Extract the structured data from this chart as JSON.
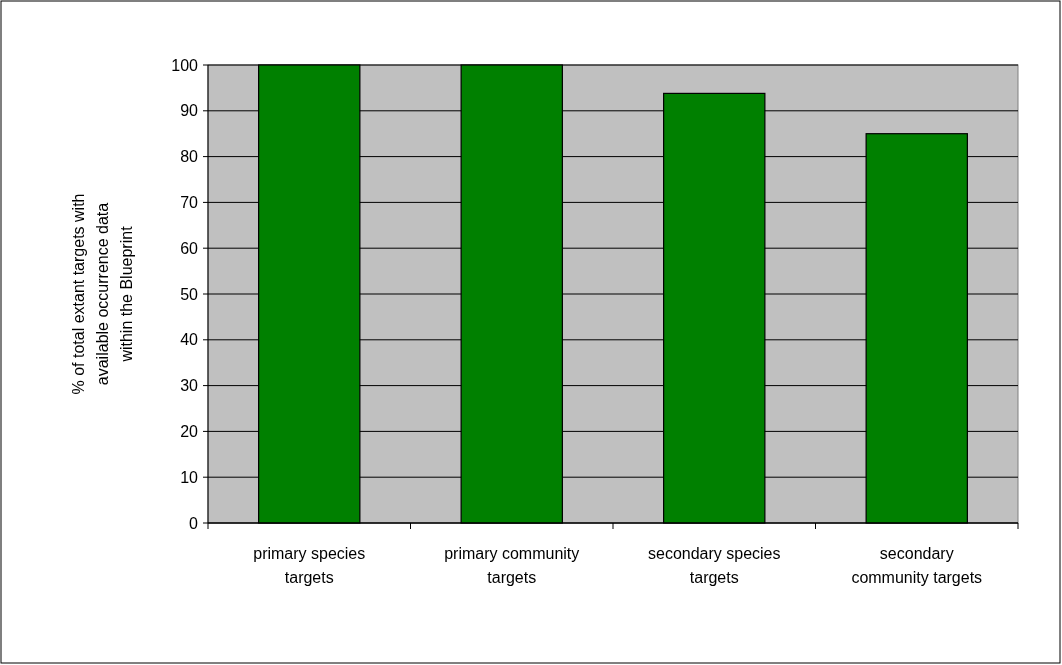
{
  "chart_data": {
    "type": "bar",
    "ylabel": "% of total extant targets with available occurrence data within the Blueprint",
    "categories": [
      "primary species targets",
      "primary community targets",
      "secondary species targets",
      "secondary community targets"
    ],
    "values": [
      100,
      100,
      93.8,
      85
    ],
    "color": "#008000",
    "ylim": [
      0,
      100
    ],
    "yticks": [
      0,
      10,
      20,
      30,
      40,
      50,
      60,
      70,
      80,
      90,
      100
    ],
    "grid": "y"
  }
}
